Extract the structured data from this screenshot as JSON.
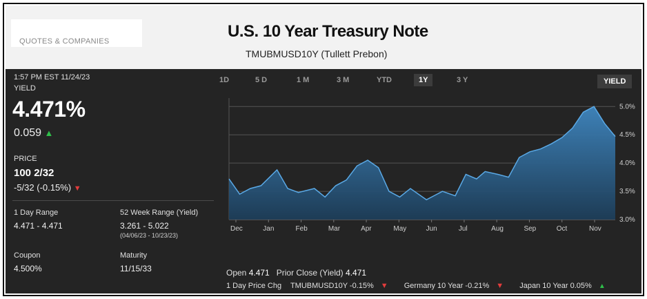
{
  "header": {
    "quotes_label": "QUOTES & COMPANIES",
    "title": "U.S. 10 Year Treasury Note",
    "subtitle": "TMUBMUSD10Y  (Tullett Prebon)"
  },
  "quote": {
    "timestamp": "1:57 PM EST 11/24/23",
    "yield_label": "YIELD",
    "yield_value": "4.471%",
    "yield_change": "0.059",
    "price_label": "PRICE",
    "price_value": "100 2/32",
    "price_change": "-5/32  (-0.15%)"
  },
  "stats": {
    "day_range_label": "1 Day Range",
    "day_range_value": "4.471 - 4.471",
    "week52_label": "52 Week Range (Yield)",
    "week52_value": "3.261 - 5.022",
    "week52_dates": "(04/06/23 - 10/23/23)",
    "coupon_label": "Coupon",
    "coupon_value": "4.500%",
    "maturity_label": "Maturity",
    "maturity_value": "11/15/33"
  },
  "tabs": [
    "1D",
    "5 D",
    "1 M",
    "3 M",
    "YTD",
    "1Y",
    "3 Y"
  ],
  "active_tab": "1Y",
  "yield_button": "YIELD",
  "footer": {
    "open_label": "Open",
    "open_value": "4.471",
    "prior_label": "Prior Close (Yield)",
    "prior_value": "4.471",
    "chg_label": "1 Day Price Chg",
    "chg1": "TMUBMUSD10Y -0.15%",
    "chg2": "Germany 10 Year -0.21%",
    "chg3": "Japan 10 Year 0.05%"
  },
  "colors": {
    "up": "#2fbf4a",
    "down": "#e23c3c",
    "line": "#5aa9e6",
    "fill_top": "#3f86bf",
    "fill_bottom": "#1d3d58"
  },
  "chart_data": {
    "type": "area",
    "ylim": [
      3.0,
      5.15
    ],
    "y_ticks": [
      "5.0%",
      "4.5%",
      "4.0%",
      "3.5%",
      "3.0%"
    ],
    "y_tick_values": [
      5.0,
      4.5,
      4.0,
      3.5,
      3.0
    ],
    "x_labels": [
      "Dec",
      "Jan",
      "Feb",
      "Mar",
      "Apr",
      "May",
      "Jun",
      "Jul",
      "Aug",
      "Sep",
      "Oct",
      "Nov"
    ],
    "x": [
      0,
      10,
      20,
      30,
      45,
      55,
      65,
      80,
      90,
      100,
      110,
      120,
      130,
      140,
      150,
      160,
      170,
      185,
      200,
      212,
      222,
      232,
      240,
      252,
      262,
      272,
      282,
      292,
      302,
      312,
      322,
      332,
      342,
      352,
      362
    ],
    "values": [
      3.72,
      3.45,
      3.55,
      3.6,
      3.88,
      3.55,
      3.48,
      3.55,
      3.4,
      3.6,
      3.7,
      3.95,
      4.05,
      3.92,
      3.5,
      3.4,
      3.55,
      3.35,
      3.5,
      3.42,
      3.8,
      3.72,
      3.85,
      3.8,
      3.75,
      4.1,
      4.2,
      4.25,
      4.34,
      4.45,
      4.62,
      4.9,
      5.0,
      4.7,
      4.47
    ]
  }
}
